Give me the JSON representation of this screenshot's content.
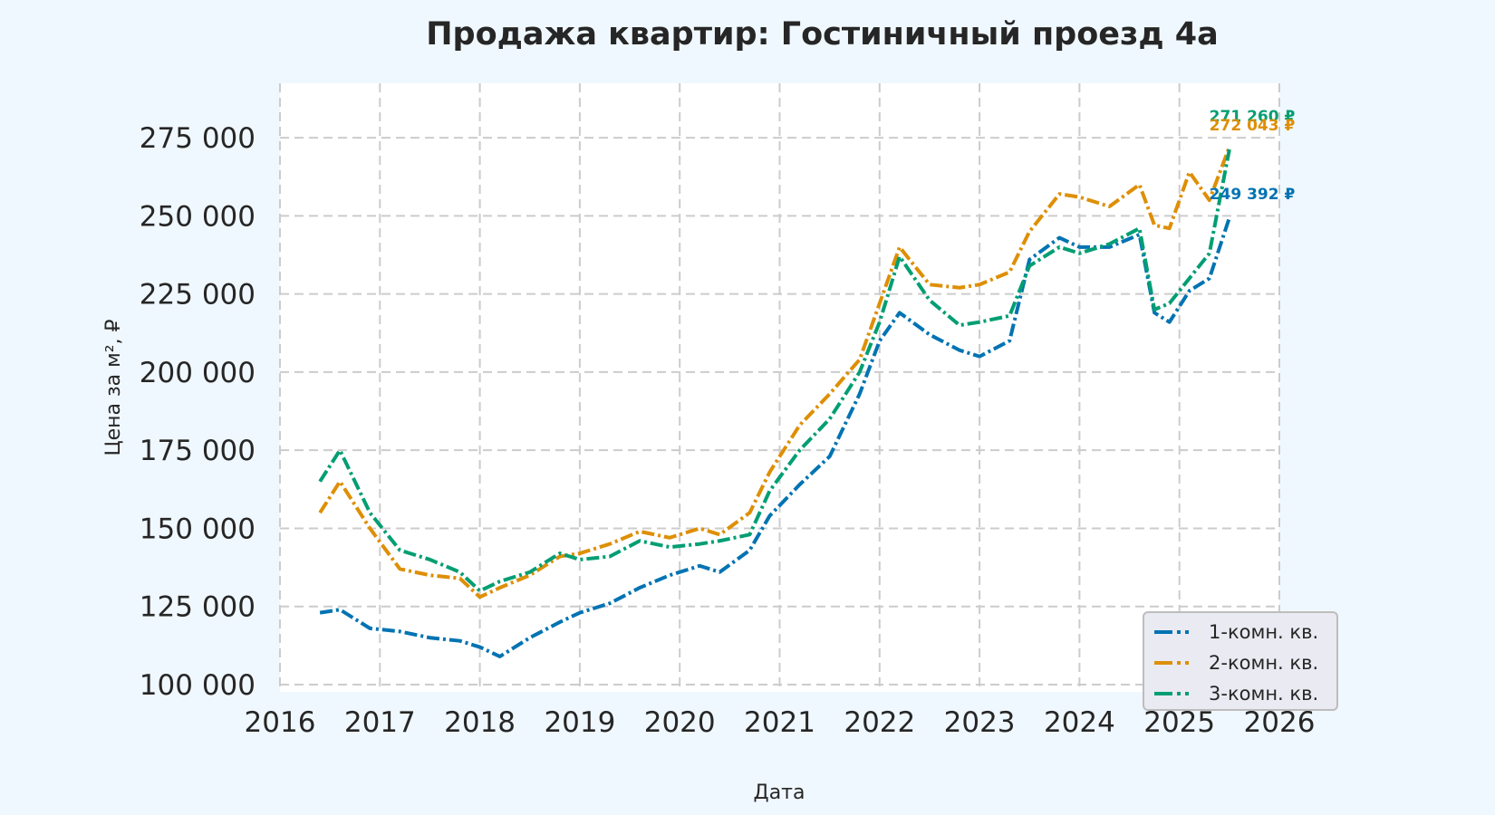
{
  "title": "Продажа квартир: Гостиничный проезд 4а",
  "chart_data": {
    "type": "line",
    "title": "Продажа квартир: Гостиничный проезд 4а",
    "xlabel": "Дата",
    "ylabel": "Цена за м², ₽",
    "xlim": [
      2016,
      2026
    ],
    "ylim": [
      97000,
      292000
    ],
    "grid": true,
    "legend_position": "lower right",
    "x_ticks": [
      "2016",
      "2017",
      "2018",
      "2019",
      "2020",
      "2021",
      "2022",
      "2023",
      "2024",
      "2025",
      "2026"
    ],
    "y_ticks": [
      "100 000",
      "125 000",
      "150 000",
      "175 000",
      "200 000",
      "225 000",
      "250 000",
      "275 000"
    ],
    "x": [
      2016.4,
      2016.6,
      2016.9,
      2017.2,
      2017.5,
      2017.8,
      2018.0,
      2018.2,
      2018.5,
      2018.8,
      2019.0,
      2019.3,
      2019.6,
      2019.9,
      2020.2,
      2020.4,
      2020.7,
      2020.9,
      2021.2,
      2021.5,
      2021.8,
      2022.0,
      2022.2,
      2022.5,
      2022.8,
      2023.0,
      2023.3,
      2023.5,
      2023.8,
      2024.0,
      2024.3,
      2024.6,
      2024.75,
      2024.9,
      2025.1,
      2025.3,
      2025.5
    ],
    "series": [
      {
        "name": "1-комн. кв.",
        "color": "#0173b2",
        "values": [
          123000,
          124000,
          118000,
          117000,
          115000,
          114000,
          112000,
          109000,
          115000,
          120000,
          123000,
          126000,
          131000,
          135000,
          138000,
          136000,
          143000,
          154000,
          164000,
          173000,
          193000,
          210000,
          219000,
          212000,
          207000,
          205000,
          210000,
          236000,
          243000,
          240000,
          240000,
          244000,
          219000,
          216000,
          226000,
          230000,
          249392
        ]
      },
      {
        "name": "2-комн. кв.",
        "color": "#de8f05",
        "values": [
          155000,
          165000,
          150000,
          137000,
          135000,
          134000,
          128000,
          131000,
          135000,
          141000,
          142000,
          145000,
          149000,
          147000,
          150000,
          148000,
          155000,
          168000,
          183000,
          193000,
          204000,
          222000,
          240000,
          228000,
          227000,
          228000,
          232000,
          245000,
          257000,
          256000,
          253000,
          260000,
          247000,
          246000,
          264000,
          255000,
          272043
        ]
      },
      {
        "name": "3-комн. кв.",
        "color": "#029e73",
        "values": [
          165000,
          175000,
          155000,
          143000,
          140000,
          136000,
          130000,
          133000,
          136000,
          142000,
          140000,
          141000,
          146000,
          144000,
          145000,
          146000,
          148000,
          162000,
          175000,
          185000,
          200000,
          216000,
          237000,
          223000,
          215000,
          216000,
          218000,
          234000,
          240000,
          238000,
          241000,
          246000,
          220000,
          222000,
          230000,
          238000,
          271260
        ]
      }
    ],
    "annotations": [
      {
        "series": "3-комн. кв.",
        "text": "271 260 ₽"
      },
      {
        "series": "2-комн. кв.",
        "text": "272 043 ₽"
      },
      {
        "series": "1-комн. кв.",
        "text": "249 392 ₽"
      }
    ]
  }
}
